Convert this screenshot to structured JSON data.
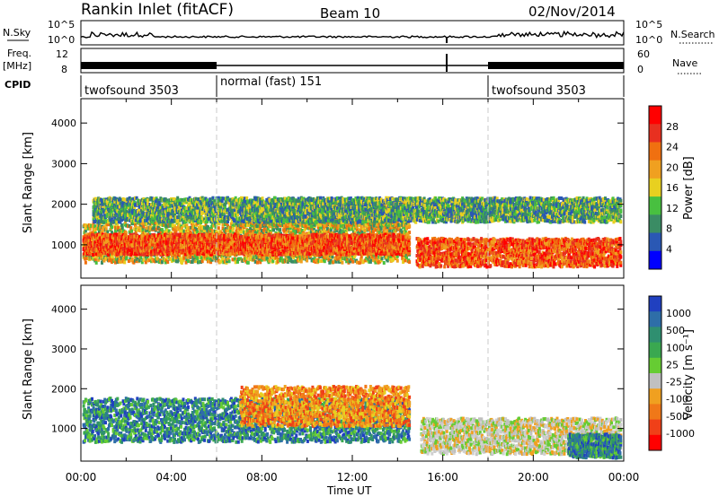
{
  "header": {
    "title": "Rankin Inlet (fitACF)",
    "beam": "Beam 10",
    "date": "02/Nov/2014"
  },
  "nsky_panel": {
    "left_label": "N.Sky",
    "right_label": "N.Search",
    "left_ticks": [
      "10^5",
      "10^0"
    ],
    "right_ticks": [
      "10^5",
      "10^0"
    ]
  },
  "freq_panel": {
    "left_label": "Freq.",
    "left_unit": "[MHz]",
    "right_label": "Nave",
    "left_ticks": [
      "12",
      "8"
    ],
    "right_ticks": [
      "60",
      "0"
    ]
  },
  "cpid": {
    "label": "CPID",
    "segments": [
      {
        "name": "twofsound 3503",
        "start": 0,
        "end": 6
      },
      {
        "name": "normal (fast) 151",
        "start": 6,
        "end": 18
      },
      {
        "name": "twofsound 3503",
        "start": 18,
        "end": 24
      }
    ]
  },
  "power_colorbar": {
    "label": "Power [dB]",
    "ticks": [
      "4",
      "8",
      "12",
      "16",
      "20",
      "24",
      "28"
    ],
    "colors": [
      "#0000ff",
      "#2a58b4",
      "#3a8c64",
      "#48c040",
      "#e8d020",
      "#f0a020",
      "#f07010",
      "#e83020",
      "#ff0000"
    ]
  },
  "velocity_colorbar": {
    "label": "Velocity [m s⁻¹]",
    "ticks": [
      "1000",
      "500",
      "100",
      "25",
      "-25",
      "-100",
      "-500",
      "-1000"
    ],
    "colors": [
      "#2040c0",
      "#2e6ea8",
      "#2f8f70",
      "#3aa850",
      "#66cc33",
      "#c0c0c0",
      "#f0a020",
      "#f07818",
      "#f04018",
      "#ff0000"
    ]
  },
  "chart_data": {
    "type": "heatmap",
    "xlabel": "Time UT",
    "ylabel": "Slant Range [km]",
    "x_ticks": [
      "00:00",
      "04:00",
      "08:00",
      "12:00",
      "16:00",
      "20:00",
      "00:00"
    ],
    "y_ticks": [
      "1000",
      "2000",
      "3000",
      "4000"
    ],
    "xlim": [
      0,
      24
    ],
    "ylim": [
      180,
      4600
    ],
    "power_regions": [
      {
        "t0": 0.0,
        "t1": 14.5,
        "r0": 600,
        "r1": 1600,
        "level": "mid"
      },
      {
        "t0": 0.0,
        "t1": 14.5,
        "r0": 800,
        "r1": 1300,
        "level": "high"
      },
      {
        "t0": 7.0,
        "t1": 14.5,
        "r0": 1500,
        "r1": 2100,
        "level": "mid"
      },
      {
        "t0": 14.8,
        "t1": 24.0,
        "r0": 500,
        "r1": 1200,
        "level": "high"
      },
      {
        "t0": 0.5,
        "t1": 24.0,
        "r0": 1600,
        "r1": 2200,
        "level": "low"
      }
    ],
    "velocity_regions": [
      {
        "t0": 0.0,
        "t1": 14.5,
        "r0": 700,
        "r1": 1800,
        "band": "positive"
      },
      {
        "t0": 7.0,
        "t1": 14.5,
        "r0": 1100,
        "r1": 2100,
        "band": "negative"
      },
      {
        "t0": 15.0,
        "t1": 24.0,
        "r0": 400,
        "r1": 1300,
        "band": "neutral"
      },
      {
        "t0": 21.5,
        "t1": 24.0,
        "r0": 300,
        "r1": 900,
        "band": "positive"
      }
    ]
  }
}
